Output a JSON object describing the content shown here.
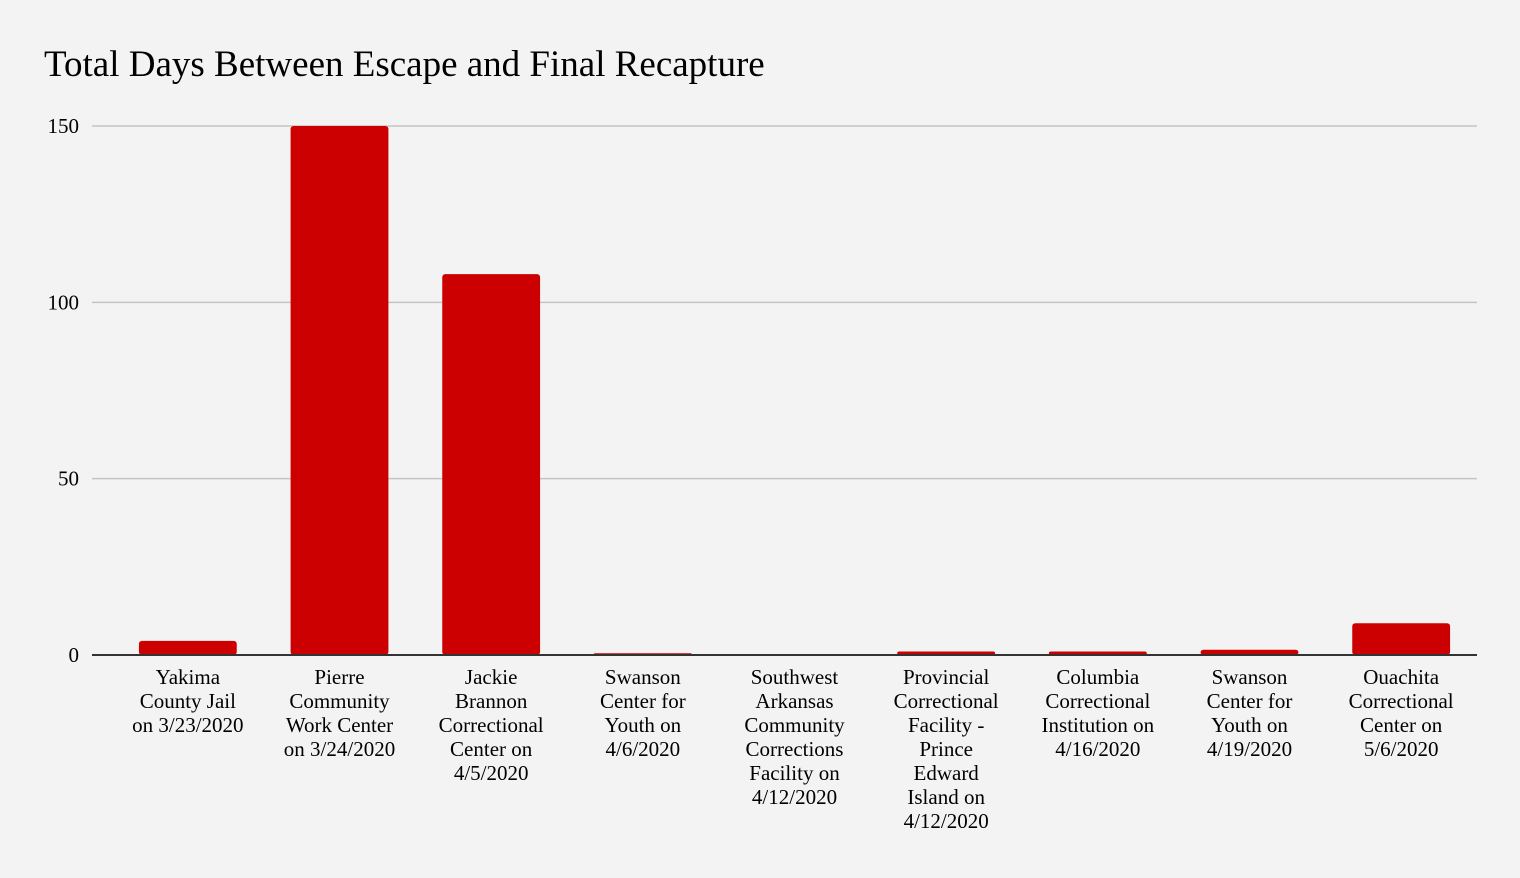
{
  "chart_data": {
    "type": "bar",
    "title": "Total Days Between Escape and Final Recapture",
    "xlabel": "",
    "ylabel": "",
    "ylim": [
      0,
      150
    ],
    "yticks": [
      0,
      50,
      100,
      150
    ],
    "grid": true,
    "legend": "none",
    "bar_color": "#cc0000",
    "categories": [
      [
        "Yakima",
        "County Jail",
        "on 3/23/2020"
      ],
      [
        "Pierre",
        "Community",
        "Work Center",
        "on 3/24/2020"
      ],
      [
        "Jackie",
        "Brannon",
        "Correctional",
        "Center on",
        "4/5/2020"
      ],
      [
        "Swanson",
        "Center for",
        "Youth on",
        "4/6/2020"
      ],
      [
        "Southwest",
        "Arkansas",
        "Community",
        "Corrections",
        "Facility on",
        "4/12/2020"
      ],
      [
        "Provincial",
        "Correctional",
        "Facility -",
        "Prince",
        "Edward",
        "Island on",
        "4/12/2020"
      ],
      [
        "Columbia",
        "Correctional",
        "Institution on",
        "4/16/2020"
      ],
      [
        "Swanson",
        "Center for",
        "Youth on",
        "4/19/2020"
      ],
      [
        "Ouachita",
        "Correctional",
        "Center on",
        "5/6/2020"
      ]
    ],
    "values": [
      4,
      150,
      108,
      0.5,
      0,
      1,
      1,
      1.5,
      9
    ]
  }
}
